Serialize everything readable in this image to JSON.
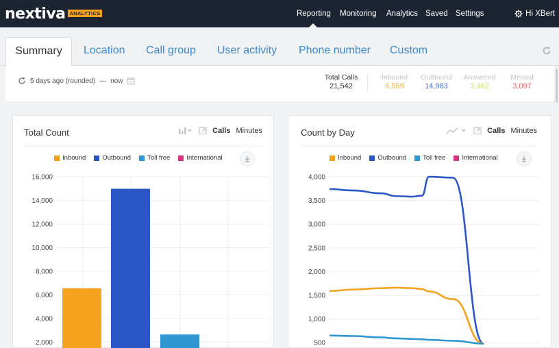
{
  "app": {
    "logo_text": "nextiva",
    "logo_badge": "ANALYTICS",
    "nav": [
      "Reporting",
      "Monitoring",
      "Analytics",
      "Saved",
      "Settings"
    ],
    "user_greeting": "Hi XBert"
  },
  "tabs": [
    "Summary",
    "Location",
    "Call group",
    "User activity",
    "Phone number",
    "Custom"
  ],
  "summary": {
    "range_text": "5 days ago (rounded)",
    "range_sep": "—",
    "range_end": "now",
    "stats": [
      {
        "label": "Total Calls",
        "value": "21,542",
        "color": "#333333"
      },
      {
        "label": "Inbound",
        "value": "6,559",
        "color": "#f5a21f"
      },
      {
        "label": "Outbound",
        "value": "14,983",
        "color": "#2a56c6"
      },
      {
        "label": "Answered",
        "value": "3,462",
        "color": "#c8d84a"
      },
      {
        "label": "Missed",
        "value": "3,097",
        "color": "#e8454a"
      }
    ]
  },
  "cards": {
    "left": {
      "title": "Total Count",
      "unit_active": "Calls",
      "unit_other": "Minutes"
    },
    "right": {
      "title": "Count by Day",
      "unit_active": "Calls",
      "unit_other": "Minutes"
    }
  },
  "legend": [
    {
      "name": "Inbound",
      "color": "#f5a21f"
    },
    {
      "name": "Outbound",
      "color": "#2a56c6"
    },
    {
      "name": "Toll free",
      "color": "#2f96d2"
    },
    {
      "name": "International",
      "color": "#d63383"
    }
  ],
  "icons": {
    "refresh": "refresh-icon",
    "calendar": "calendar-icon",
    "gear": "gear-icon",
    "download": "download-icon",
    "bar_chart": "bar-chart-icon",
    "line_chart": "line-chart-icon",
    "expand": "expand-icon"
  },
  "chart_data": [
    {
      "type": "bar",
      "title": "Total Count",
      "categories": [
        "Inbound",
        "Outbound",
        "Toll free",
        "International"
      ],
      "values": [
        6559,
        14983,
        2650,
        0
      ],
      "colors": [
        "#f5a21f",
        "#2a56c6",
        "#2f96d2",
        "#d63383"
      ],
      "y_ticks": [
        "2,000",
        "4,000",
        "6,000",
        "8,000",
        "10,000",
        "12,000",
        "14,000",
        "16,000"
      ],
      "ylim": [
        0,
        16000
      ],
      "grid": true
    },
    {
      "type": "line",
      "title": "Count by Day",
      "y_ticks": [
        "500",
        "1,000",
        "1,500",
        "2,000",
        "2,500",
        "3,000",
        "3,500",
        "4,000"
      ],
      "ylim": [
        500,
        4000
      ],
      "grid": true,
      "series": [
        {
          "name": "Outbound",
          "color": "#2a56c6",
          "values": [
            3740,
            3710,
            3650,
            3590,
            3580,
            3600,
            4000,
            3980,
            480
          ]
        },
        {
          "name": "Inbound",
          "color": "#f5a21f",
          "values": [
            1590,
            1620,
            1650,
            1660,
            1650,
            1630,
            1580,
            1420,
            480
          ]
        },
        {
          "name": "Toll free",
          "color": "#2f96d2",
          "values": [
            650,
            640,
            610,
            590,
            580,
            570,
            560,
            540,
            480
          ]
        }
      ]
    }
  ]
}
